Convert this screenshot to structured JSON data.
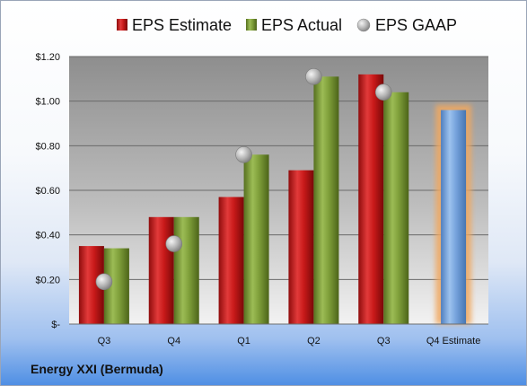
{
  "company_name": "Energy XXI (Bermuda)",
  "chart_data": {
    "type": "bar",
    "categories": [
      "Q3",
      "Q4",
      "Q1",
      "Q2",
      "Q3",
      "Q4 Estimate"
    ],
    "y_tick_labels": [
      "$-",
      "$0.20",
      "$0.40",
      "$0.60",
      "$0.80",
      "$1.00",
      "$1.20"
    ],
    "ylim": [
      0,
      1.2
    ],
    "grid": true,
    "legend_position": "top",
    "series": [
      {
        "name": "EPS Estimate",
        "kind": "bar",
        "color": "#cc2020",
        "values": [
          0.35,
          0.48,
          0.57,
          0.69,
          1.12,
          null
        ]
      },
      {
        "name": "EPS Actual",
        "kind": "bar",
        "color": "#7e9e3c",
        "values": [
          0.34,
          0.48,
          0.76,
          1.11,
          1.04,
          null
        ]
      },
      {
        "name": "EPS GAAP",
        "kind": "marker",
        "color": "#b8b8b8",
        "values": [
          0.19,
          0.36,
          0.76,
          1.11,
          1.04,
          null
        ]
      },
      {
        "name": "Q4 Estimate",
        "kind": "bar",
        "color": "#6f9fd8",
        "highlight": "#f0a860",
        "values": [
          null,
          null,
          null,
          null,
          null,
          0.96
        ]
      }
    ]
  }
}
